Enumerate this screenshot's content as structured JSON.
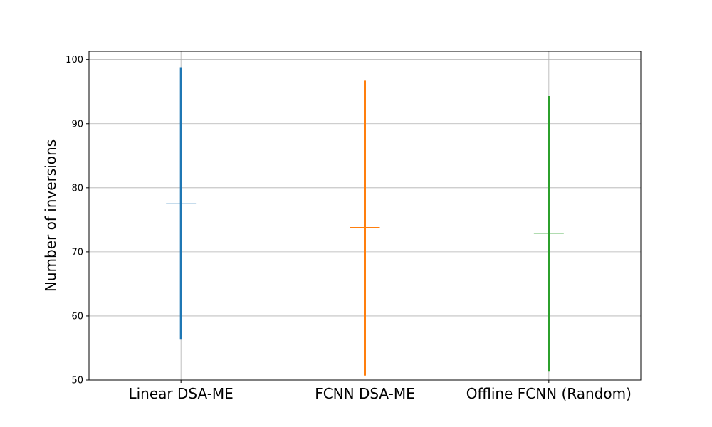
{
  "chart_data": {
    "type": "errorbar",
    "title": "",
    "xlabel": "",
    "ylabel": "Number of inversions",
    "ylim": [
      50,
      101.3
    ],
    "yticks": [
      50,
      60,
      70,
      80,
      90,
      100
    ],
    "grid": true,
    "categories": [
      "Linear DSA-ME",
      "FCNN DSA-ME",
      "Offline FCNN (Random)"
    ],
    "series": [
      {
        "category": "Linear DSA-ME",
        "min": 56.3,
        "mean": 77.5,
        "max": 98.8,
        "color": "#1f77b4"
      },
      {
        "category": "FCNN DSA-ME",
        "min": 50.7,
        "mean": 73.8,
        "max": 96.7,
        "color": "#ff7f0e"
      },
      {
        "category": "Offline FCNN (Random)",
        "min": 51.3,
        "mean": 72.9,
        "max": 94.3,
        "color": "#2ca02c"
      }
    ]
  }
}
